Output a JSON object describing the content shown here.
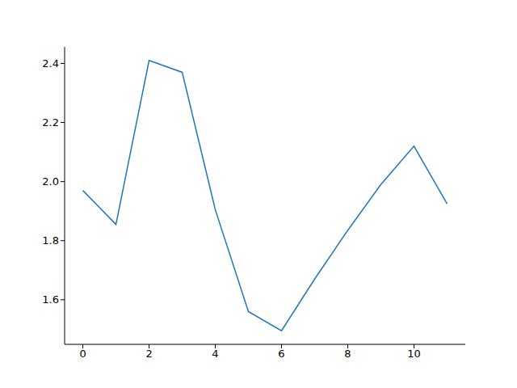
{
  "chart_data": {
    "type": "line",
    "x": [
      0,
      1,
      2,
      3,
      4,
      5,
      6,
      7,
      8,
      9,
      10,
      11
    ],
    "values": [
      1.97,
      1.855,
      2.41,
      2.37,
      1.905,
      1.56,
      1.495,
      1.67,
      1.835,
      1.99,
      2.12,
      1.925
    ],
    "color": "#1f77b4",
    "xlim": [
      -0.55,
      11.55
    ],
    "ylim": [
      1.449,
      2.456
    ],
    "xticks": [
      0,
      2,
      4,
      6,
      8,
      10
    ],
    "yticks": [
      1.6,
      1.8,
      {
        "value": 2,
        "label": "2.0"
      },
      2.2,
      2.4
    ],
    "grid": false
  }
}
